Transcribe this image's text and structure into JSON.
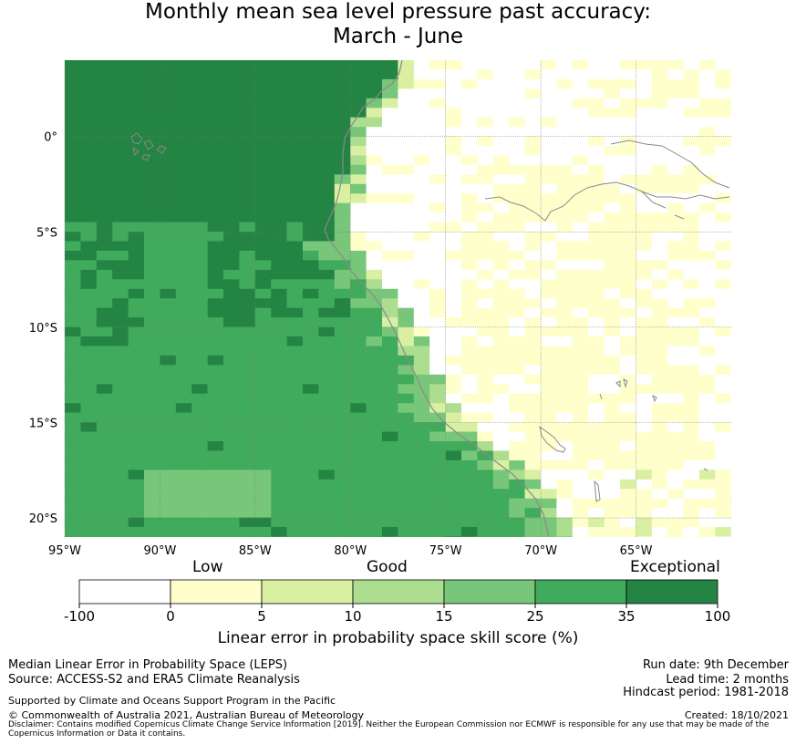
{
  "title_line1": "Monthly mean sea level pressure past accuracy:",
  "title_line2": "March - June",
  "map": {
    "lat_labels": [
      "0°",
      "5°S",
      "10°S",
      "15°S",
      "20°S"
    ],
    "lon_labels": [
      "95°W",
      "90°W",
      "85°W",
      "80°W",
      "75°W",
      "70°W",
      "65°W"
    ],
    "lon_range": [
      -95,
      -60
    ],
    "lat_range": [
      -21,
      4
    ]
  },
  "colorbar": {
    "category_labels": [
      "Low",
      "Good",
      "Exceptional"
    ],
    "tick_labels": [
      "-100",
      "0",
      "5",
      "10",
      "15",
      "25",
      "35",
      "100"
    ],
    "colors": [
      "#ffffff",
      "#ffffcc",
      "#d9f0a3",
      "#addd8e",
      "#78c679",
      "#41ab5d",
      "#238443"
    ],
    "caption": "Linear error in probability space skill score (%)"
  },
  "footer": {
    "line1_left": "Median Linear Error in Probability Space (LEPS)",
    "line2_left": "Source: ACCESS-S2 and ERA5 Climate Reanalysis",
    "line3_left": "Supported by Climate and Oceans Support Program in the Pacific",
    "line4_left": "© Commonwealth of Australia 2021, Australian Bureau of Meteorology",
    "run_date": "Run date: 9th December",
    "lead_time": "Lead time: 2 months",
    "hindcast": "Hindcast period: 1981-2018",
    "created": "Created: 18/10/2021",
    "disclaimer": "Disclaimer: Contains modified Copernicus Climate Change Service Information [2019]. Neither the European Commission nor ECMWF is responsible for any use that may be made of the Copernicus Information or Data it contains."
  }
}
